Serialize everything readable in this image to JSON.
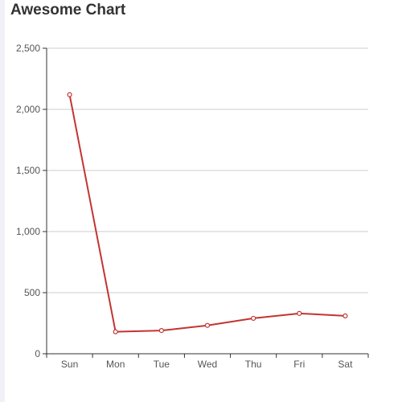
{
  "chart_data": {
    "type": "line",
    "title": "Awesome Chart",
    "categories": [
      "Sun",
      "Mon",
      "Tue",
      "Wed",
      "Thu",
      "Fri",
      "Sat"
    ],
    "series": [
      {
        "values": [
          2120,
          180,
          190,
          232,
          290,
          330,
          310
        ],
        "color": "#c23531"
      }
    ],
    "ylim": [
      0,
      2500
    ],
    "yticks": [
      0,
      500,
      1000,
      1500,
      2000,
      2500
    ],
    "ytick_labels": [
      "0",
      "500",
      "1,000",
      "1,500",
      "2,000",
      "2,500"
    ],
    "grid": true,
    "legend": "none"
  }
}
